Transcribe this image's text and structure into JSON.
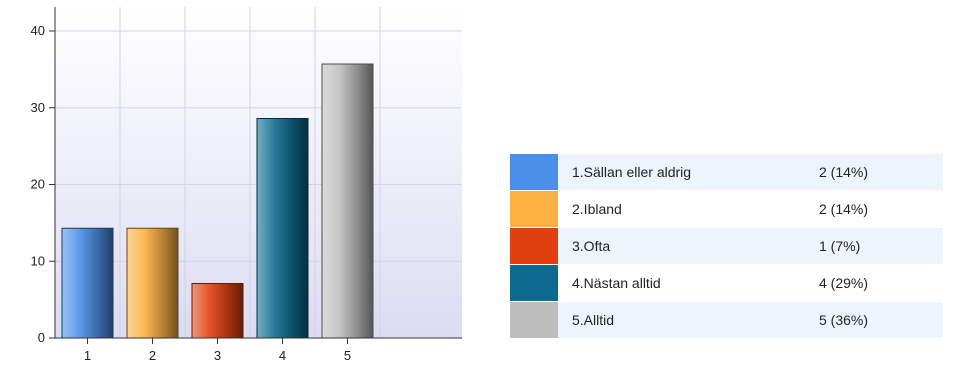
{
  "chart_data": {
    "type": "bar",
    "categories": [
      "1",
      "2",
      "3",
      "4",
      "5"
    ],
    "values": [
      14.3,
      14.3,
      7.1,
      28.6,
      35.7
    ],
    "ylim": [
      0,
      40
    ],
    "yticks": [
      0,
      10,
      20,
      30,
      40
    ],
    "grid": true,
    "colors": [
      "#4a8fe8",
      "#fbb040",
      "#e04010",
      "#0d6a8e",
      "#bdbdbd"
    ],
    "legend": {
      "placement": "right",
      "items": [
        {
          "label": "1.Sällan eller aldrig",
          "value": "2 (14%)",
          "color": "#4a8fe8"
        },
        {
          "label": "2.Ibland",
          "value": "2 (14%)",
          "color": "#fbb040"
        },
        {
          "label": "3.Ofta",
          "value": "1 (7%)",
          "color": "#e04010"
        },
        {
          "label": "4.Nästan alltid",
          "value": "4 (29%)",
          "color": "#0d6a8e"
        },
        {
          "label": "5.Alltid",
          "value": "5 (36%)",
          "color": "#bdbdbd"
        }
      ]
    }
  }
}
